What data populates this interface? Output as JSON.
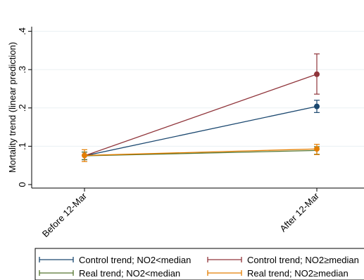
{
  "chart_data": {
    "type": "line",
    "categories": [
      "Before 12-Mar",
      "After 12-Mar"
    ],
    "ylabel": "Mortality trend (linear prediction)",
    "xlabel": "",
    "ylim": [
      -0.01,
      0.42
    ],
    "yticks": [
      {
        "value": 0,
        "label": "0"
      },
      {
        "value": 0.1,
        "label": ".1"
      },
      {
        "value": 0.2,
        "label": ".2"
      },
      {
        "value": 0.3,
        "label": ".3"
      },
      {
        "value": 0.4,
        "label": ".4"
      }
    ],
    "grid": true,
    "legend_position": "bottom",
    "series": [
      {
        "name": "Control trend; NO2<median",
        "color": "#1a476f",
        "values": [
          0.075,
          0.204
        ],
        "ci_low": [
          0.065,
          0.188
        ],
        "ci_high": [
          0.085,
          0.22
        ],
        "show_marker": [
          false,
          true
        ]
      },
      {
        "name": "Control trend; NO2≥median",
        "color": "#90353b",
        "values": [
          0.075,
          0.288
        ],
        "ci_low": [
          0.065,
          0.236
        ],
        "ci_high": [
          0.085,
          0.341
        ],
        "show_marker": [
          false,
          true
        ]
      },
      {
        "name": "Real trend; NO2<median",
        "color": "#55752f",
        "values": [
          0.075,
          0.089
        ],
        "ci_low": [
          0.065,
          0.079
        ],
        "ci_high": [
          0.085,
          0.099
        ],
        "show_marker": [
          false,
          false
        ]
      },
      {
        "name": "Real trend; NO2≥median",
        "color": "#e37e00",
        "values": [
          0.076,
          0.093
        ],
        "ci_low": [
          0.06,
          0.078
        ],
        "ci_high": [
          0.091,
          0.105
        ],
        "show_marker": [
          true,
          true
        ]
      }
    ]
  }
}
